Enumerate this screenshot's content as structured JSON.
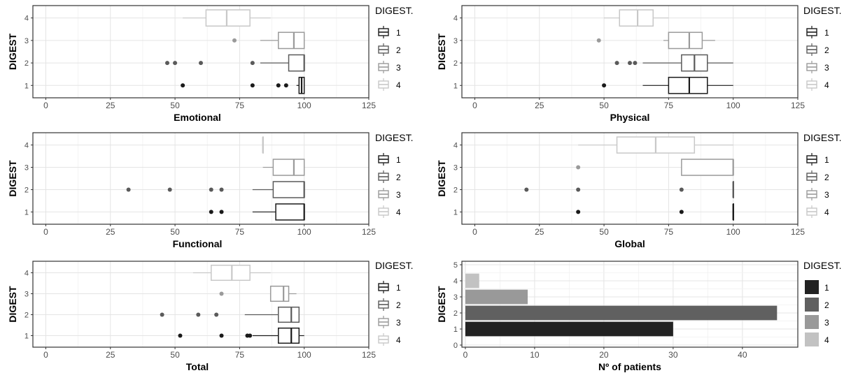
{
  "legend_title": "DIGEST.",
  "y_axis_label": "DIGEST",
  "chart_data": [
    {
      "type": "boxplot",
      "xlabel": "Emotional",
      "ylabel": "DIGEST",
      "xlim": [
        -5,
        125
      ],
      "x_ticks": [
        0,
        25,
        50,
        75,
        100,
        125
      ],
      "categories": [
        "1",
        "2",
        "3",
        "4"
      ],
      "colors": [
        "#1a1a1a",
        "#5a5a5a",
        "#9a9a9a",
        "#c8c8c8"
      ],
      "legend": [
        "1",
        "2",
        "3",
        "4"
      ],
      "grid": true,
      "legend_position": "right",
      "series": [
        {
          "group": "1",
          "whisker_low": 97,
          "q1": 98,
          "median": 99,
          "q3": 100,
          "whisker_high": 100,
          "outliers": [
            53,
            80,
            90,
            93
          ]
        },
        {
          "group": "2",
          "whisker_low": 83,
          "q1": 94,
          "median": 100,
          "q3": 100,
          "whisker_high": 100,
          "outliers": [
            47,
            50,
            60,
            80
          ]
        },
        {
          "group": "3",
          "whisker_low": 83,
          "q1": 90,
          "median": 96,
          "q3": 100,
          "whisker_high": 100,
          "outliers": [
            73
          ]
        },
        {
          "group": "4",
          "whisker_low": 53,
          "q1": 62,
          "median": 70,
          "q3": 79,
          "whisker_high": 87,
          "outliers": []
        }
      ]
    },
    {
      "type": "boxplot",
      "xlabel": "Physical",
      "ylabel": "DIGEST",
      "xlim": [
        -5,
        125
      ],
      "x_ticks": [
        0,
        25,
        50,
        75,
        100,
        125
      ],
      "categories": [
        "1",
        "2",
        "3",
        "4"
      ],
      "colors": [
        "#1a1a1a",
        "#5a5a5a",
        "#9a9a9a",
        "#c8c8c8"
      ],
      "legend": [
        "1",
        "2",
        "3",
        "4"
      ],
      "grid": true,
      "legend_position": "right",
      "series": [
        {
          "group": "1",
          "whisker_low": 65,
          "q1": 75,
          "median": 83,
          "q3": 90,
          "whisker_high": 100,
          "outliers": [
            50
          ]
        },
        {
          "group": "2",
          "whisker_low": 65,
          "q1": 80,
          "median": 85,
          "q3": 90,
          "whisker_high": 100,
          "outliers": [
            55,
            60,
            62
          ]
        },
        {
          "group": "3",
          "whisker_low": 73,
          "q1": 75,
          "median": 83,
          "q3": 88,
          "whisker_high": 93,
          "outliers": [
            48
          ]
        },
        {
          "group": "4",
          "whisker_low": 50,
          "q1": 56,
          "median": 63,
          "q3": 69,
          "whisker_high": 75,
          "outliers": []
        }
      ]
    },
    {
      "type": "boxplot",
      "xlabel": "Functional",
      "ylabel": "DIGEST",
      "xlim": [
        -5,
        125
      ],
      "x_ticks": [
        0,
        25,
        50,
        75,
        100,
        125
      ],
      "categories": [
        "1",
        "2",
        "3",
        "4"
      ],
      "colors": [
        "#1a1a1a",
        "#5a5a5a",
        "#9a9a9a",
        "#c8c8c8"
      ],
      "legend": [
        "1",
        "2",
        "3",
        "4"
      ],
      "grid": true,
      "legend_position": "right",
      "series": [
        {
          "group": "1",
          "whisker_low": 80,
          "q1": 89,
          "median": 100,
          "q3": 100,
          "whisker_high": 100,
          "outliers": [
            64,
            68
          ]
        },
        {
          "group": "2",
          "whisker_low": 80,
          "q1": 88,
          "median": 100,
          "q3": 100,
          "whisker_high": 100,
          "outliers": [
            32,
            48,
            64,
            68
          ]
        },
        {
          "group": "3",
          "whisker_low": 84,
          "q1": 88,
          "median": 96,
          "q3": 100,
          "whisker_high": 100,
          "outliers": []
        },
        {
          "group": "4",
          "whisker_low": 84,
          "q1": 84,
          "median": 84,
          "q3": 84,
          "whisker_high": 84,
          "outliers": []
        }
      ]
    },
    {
      "type": "boxplot",
      "xlabel": "Global",
      "ylabel": "DIGEST",
      "xlim": [
        -5,
        125
      ],
      "x_ticks": [
        0,
        25,
        50,
        75,
        100,
        125
      ],
      "categories": [
        "1",
        "2",
        "3",
        "4"
      ],
      "colors": [
        "#1a1a1a",
        "#5a5a5a",
        "#9a9a9a",
        "#c8c8c8"
      ],
      "legend": [
        "1",
        "2",
        "3",
        "4"
      ],
      "grid": true,
      "legend_position": "right",
      "series": [
        {
          "group": "1",
          "whisker_low": 100,
          "q1": 100,
          "median": 100,
          "q3": 100,
          "whisker_high": 100,
          "outliers": [
            40,
            80
          ]
        },
        {
          "group": "2",
          "whisker_low": 100,
          "q1": 100,
          "median": 100,
          "q3": 100,
          "whisker_high": 100,
          "outliers": [
            20,
            40,
            80
          ]
        },
        {
          "group": "3",
          "whisker_low": 80,
          "q1": 80,
          "median": 100,
          "q3": 100,
          "whisker_high": 100,
          "outliers": [
            40
          ]
        },
        {
          "group": "4",
          "whisker_low": 40,
          "q1": 55,
          "median": 70,
          "q3": 85,
          "whisker_high": 100,
          "outliers": []
        }
      ]
    },
    {
      "type": "boxplot",
      "xlabel": "Total",
      "ylabel": "DIGEST",
      "xlim": [
        -5,
        125
      ],
      "x_ticks": [
        0,
        25,
        50,
        75,
        100,
        125
      ],
      "categories": [
        "1",
        "2",
        "3",
        "4"
      ],
      "colors": [
        "#1a1a1a",
        "#5a5a5a",
        "#9a9a9a",
        "#c8c8c8"
      ],
      "legend": [
        "1",
        "2",
        "3",
        "4"
      ],
      "grid": true,
      "legend_position": "right",
      "series": [
        {
          "group": "1",
          "whisker_low": 80,
          "q1": 90,
          "median": 95,
          "q3": 98,
          "whisker_high": 100,
          "outliers": [
            52,
            68,
            78,
            79
          ]
        },
        {
          "group": "2",
          "whisker_low": 77,
          "q1": 90,
          "median": 95,
          "q3": 98,
          "whisker_high": 98,
          "outliers": [
            45,
            59,
            66
          ]
        },
        {
          "group": "3",
          "whisker_low": 87,
          "q1": 87,
          "median": 92,
          "q3": 94,
          "whisker_high": 97,
          "outliers": [
            68
          ]
        },
        {
          "group": "4",
          "whisker_low": 57,
          "q1": 64,
          "median": 72,
          "q3": 79,
          "whisker_high": 87,
          "outliers": []
        }
      ]
    },
    {
      "type": "bar",
      "orientation": "horizontal",
      "xlabel": "Nº of patients",
      "ylabel": "DIGEST",
      "xlim": [
        -0.5,
        48
      ],
      "ylim": [
        0,
        5
      ],
      "x_ticks": [
        0,
        10,
        20,
        30,
        40
      ],
      "y_ticks": [
        0,
        1,
        2,
        3,
        4,
        5
      ],
      "categories": [
        "1",
        "2",
        "3",
        "4"
      ],
      "values": [
        30,
        45,
        9,
        2
      ],
      "colors": [
        "#222222",
        "#606060",
        "#999999",
        "#c2c2c2"
      ],
      "legend": [
        "1",
        "2",
        "3",
        "4"
      ],
      "grid": true,
      "legend_position": "right"
    }
  ]
}
